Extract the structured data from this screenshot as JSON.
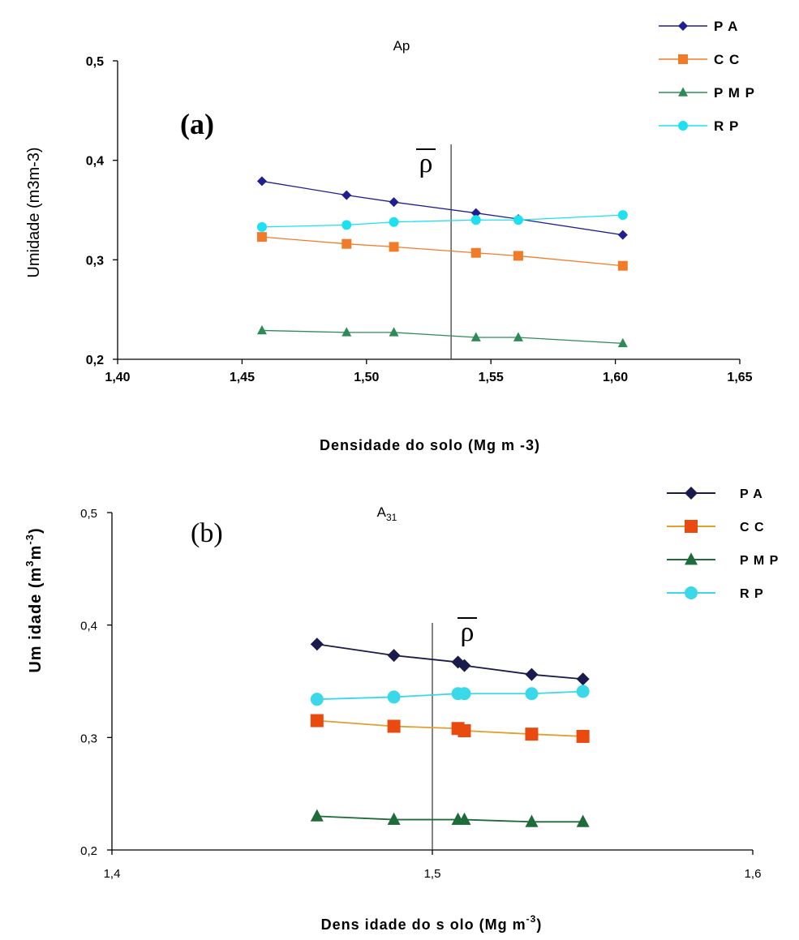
{
  "chart_data": [
    {
      "type": "line",
      "panel_label": "(a)",
      "title": "Ap",
      "xlabel": "Densidade do solo (Mg m -3)",
      "ylabel": "Umidade (m3m-3)",
      "xlim": [
        1.4,
        1.65
      ],
      "ylim": [
        0.2,
        0.5
      ],
      "x_ticks": [
        "1,40",
        "1,45",
        "1,50",
        "1,55",
        "1,60",
        "1,65"
      ],
      "y_ticks": [
        "0,2",
        "0,3",
        "0,4",
        "0,5"
      ],
      "x": [
        1.458,
        1.492,
        1.511,
        1.544,
        1.561,
        1.603
      ],
      "reference_line": {
        "x": 1.534,
        "label": "ρ"
      },
      "legend_position": "top-right",
      "series": [
        {
          "name": "P A",
          "color": "#1f1f8f",
          "marker": "diamond",
          "values": [
            0.379,
            0.365,
            0.358,
            0.347,
            0.341,
            0.325
          ]
        },
        {
          "name": "C C",
          "color": "#f07c2a",
          "marker": "square",
          "values": [
            0.323,
            0.316,
            0.313,
            0.307,
            0.304,
            0.294
          ]
        },
        {
          "name": "P M P",
          "color": "#2e8b57",
          "marker": "triangle",
          "values": [
            0.229,
            0.227,
            0.227,
            0.222,
            0.222,
            0.216
          ]
        },
        {
          "name": "R P",
          "color": "#1ee0f0",
          "marker": "circle",
          "values": [
            0.333,
            0.335,
            0.338,
            0.34,
            0.34,
            0.345
          ]
        }
      ]
    },
    {
      "type": "line",
      "panel_label": "(b)",
      "title": "A",
      "title_subscript": "31",
      "xlabel": "Dens idade do s olo (Mg m",
      "xlabel_superscript": "-3",
      "xlabel_suffix": ")",
      "ylabel": "Um idade (m",
      "ylabel_sup1": "3",
      "ylabel_mid": "m",
      "ylabel_sup2": "-3",
      "ylabel_suffix": ")",
      "xlim": [
        1.4,
        1.6
      ],
      "ylim": [
        0.2,
        0.5
      ],
      "x_ticks": [
        "1,4",
        "1,5",
        "1,6"
      ],
      "y_ticks": [
        "0,2",
        "0,3",
        "0,4",
        "0,5"
      ],
      "x": [
        1.464,
        1.488,
        1.508,
        1.51,
        1.531,
        1.547
      ],
      "reference_line": {
        "x": 1.5,
        "label": "ρ"
      },
      "legend_position": "top-right",
      "series": [
        {
          "name": "P A",
          "color": "#1a1a4d",
          "marker": "diamond",
          "values": [
            0.383,
            0.373,
            0.367,
            0.364,
            0.356,
            0.352
          ]
        },
        {
          "name": "C C",
          "color": "#e84a10",
          "line_color": "#e0a030",
          "marker": "square",
          "values": [
            0.315,
            0.31,
            0.308,
            0.306,
            0.303,
            0.301
          ]
        },
        {
          "name": "P M P",
          "color": "#1f6b3a",
          "marker": "triangle",
          "values": [
            0.23,
            0.227,
            0.227,
            0.227,
            0.225,
            0.225
          ]
        },
        {
          "name": "R P",
          "color": "#3ad8e8",
          "marker": "circle",
          "values": [
            0.334,
            0.336,
            0.339,
            0.339,
            0.339,
            0.341
          ]
        }
      ]
    }
  ]
}
